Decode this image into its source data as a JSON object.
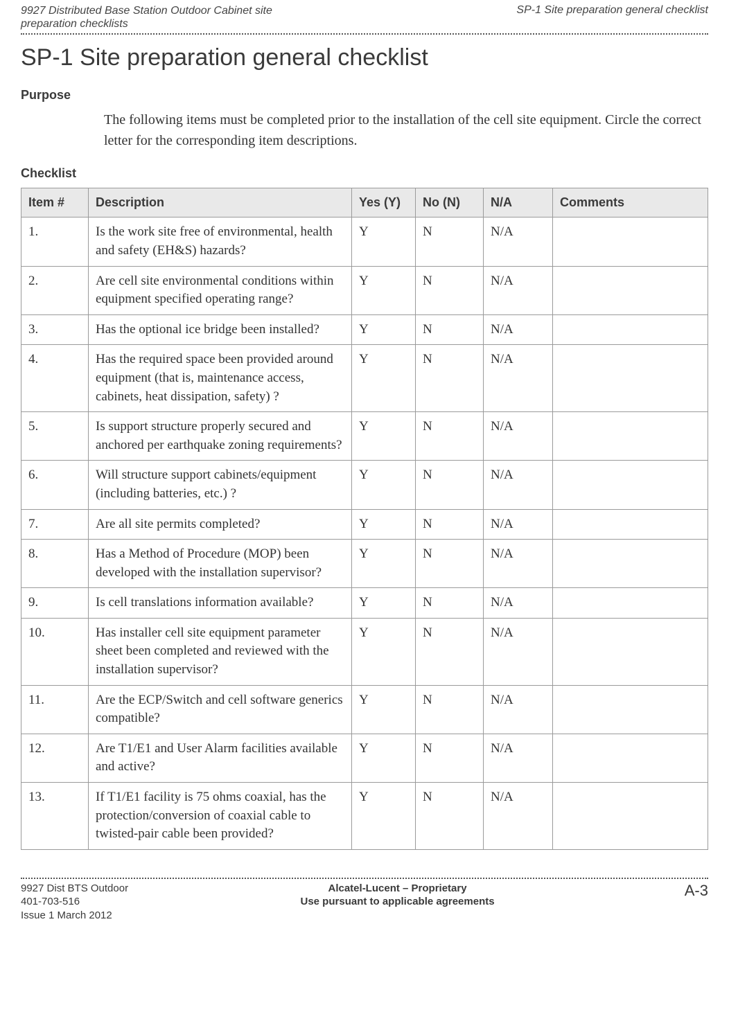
{
  "header": {
    "left_line1": "9927 Distributed Base Station Outdoor Cabinet site",
    "left_line2": "preparation checklists",
    "right": "SP-1 Site preparation general checklist"
  },
  "title": "SP-1 Site preparation general checklist",
  "purpose": {
    "label": "Purpose",
    "text": "The following items must be completed prior to the installation of the cell site equipment. Circle the correct letter for the corresponding item descriptions."
  },
  "checklist": {
    "label": "Checklist",
    "columns": {
      "item": "Item #",
      "desc": "Description",
      "yes": "Yes (Y)",
      "no": "No (N)",
      "na": "N/A",
      "comments": "Comments"
    },
    "yes_value": "Y",
    "no_value": "N",
    "na_value": "N/A",
    "rows": [
      {
        "n": "1.",
        "desc": "Is the work site free of environmental, health and safety (EH&S) hazards?"
      },
      {
        "n": "2.",
        "desc": "Are cell site environmental conditions within equipment specified operating range?"
      },
      {
        "n": "3.",
        "desc": "Has the optional ice bridge been installed?"
      },
      {
        "n": "4.",
        "desc": "Has the required space been provided around equipment (that is, maintenance access, cabinets, heat dissipation, safety) ?"
      },
      {
        "n": "5.",
        "desc": "Is support structure properly secured and anchored per earthquake zoning requirements?"
      },
      {
        "n": "6.",
        "desc": "Will structure support cabinets/equipment (including batteries, etc.) ?"
      },
      {
        "n": "7.",
        "desc": "Are all site permits completed?"
      },
      {
        "n": "8.",
        "desc": "Has a Method of Procedure (MOP) been developed with the installation supervisor?"
      },
      {
        "n": "9.",
        "desc": "Is cell translations information available?"
      },
      {
        "n": "10.",
        "desc": "Has installer cell site equipment parameter sheet been completed and reviewed with the installation supervisor?"
      },
      {
        "n": "11.",
        "desc": "Are the ECP/Switch and cell software generics compatible?"
      },
      {
        "n": "12.",
        "desc": "Are T1/E1 and User Alarm facilities available and active?"
      },
      {
        "n": "13.",
        "desc": "If T1/E1 facility is 75 ohms coaxial, has the protection/conversion of coaxial cable to twisted-pair cable been provided?"
      }
    ]
  },
  "footer": {
    "left_line1": "9927 Dist BTS Outdoor",
    "left_line2": "401-703-516",
    "left_line3": "Issue 1   March 2012",
    "center_line1": "Alcatel-Lucent – Proprietary",
    "center_line2": "Use pursuant to applicable agreements",
    "page": "A-3"
  }
}
